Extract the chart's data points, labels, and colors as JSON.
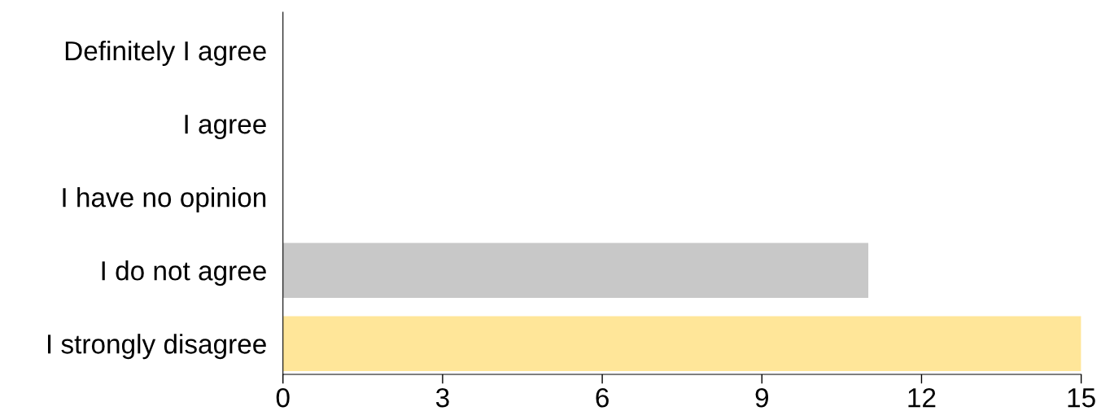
{
  "chart_data": {
    "type": "bar",
    "orientation": "horizontal",
    "categories": [
      "Definitely I agree",
      "I agree",
      "I have no opinion",
      "I do not agree",
      "I strongly disagree"
    ],
    "values": [
      0,
      0,
      0,
      11,
      15
    ],
    "colors": [
      "#c8c8c8",
      "#c8c8c8",
      "#c8c8c8",
      "#c8c8c8",
      "#ffe699"
    ],
    "xlim": [
      0,
      15
    ],
    "xticks": [
      0,
      3,
      6,
      9,
      12,
      15
    ],
    "grid": false,
    "legend": false
  }
}
